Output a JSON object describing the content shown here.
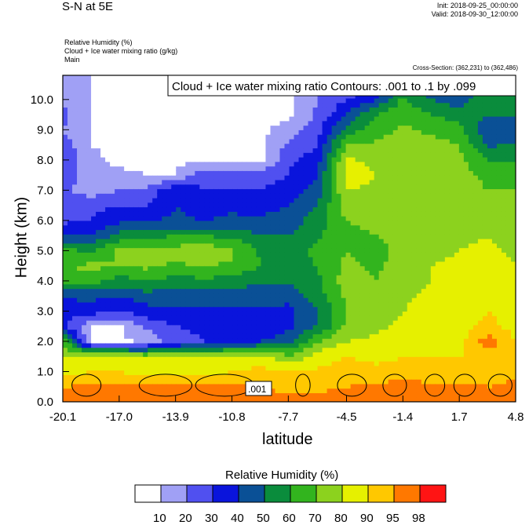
{
  "header": {
    "title": "S-N at 5E",
    "init": "Init: 2018-09-25_00:00:00",
    "valid": "Valid: 2018-09-30_12:00:00",
    "var1": "Relative Humidity   (%)",
    "var2": "Cloud + Ice water mixing ratio   (g/kg)",
    "var3": "Main",
    "cross_section": "Cross-Section: (362,231) to (362,486)"
  },
  "chart_data": {
    "type": "heatmap",
    "title": "S-N at 5E",
    "xlabel": "latitude",
    "ylabel": "Height (km)",
    "xlim": [
      -20.1,
      4.8
    ],
    "ylim": [
      0.0,
      10.8
    ],
    "x_ticks": [
      "-20.1",
      "-17.0",
      "-13.9",
      "-10.8",
      "-7.7",
      "-4.5",
      "-1.4",
      "1.7",
      "4.8"
    ],
    "x_tick_values": [
      -20.1,
      -17.0,
      -13.9,
      -10.8,
      -7.7,
      -4.5,
      -1.4,
      1.7,
      4.8
    ],
    "y_ticks": [
      "0.0",
      "1.0",
      "2.0",
      "3.0",
      "4.0",
      "5.0",
      "6.0",
      "7.0",
      "8.0",
      "9.0",
      "10.0"
    ],
    "y_tick_values": [
      0,
      1,
      2,
      3,
      4,
      5,
      6,
      7,
      8,
      9,
      10
    ],
    "contour_overlay": {
      "label": "Cloud + Ice water mixing ratio Contours: .001 to .1 by .099",
      "inline_label": ".001"
    },
    "colorbar": {
      "title": "Relative Humidity  (%)",
      "levels": [
        "10",
        "20",
        "30",
        "40",
        "50",
        "60",
        "70",
        "80",
        "90",
        "95",
        "98"
      ],
      "colors": [
        "#ffffff",
        "#a0a0f5",
        "#5050f0",
        "#0a14dc",
        "#0a5096",
        "#0a8c3c",
        "#32b41e",
        "#8cd21e",
        "#e6f000",
        "#ffc800",
        "#ff7800",
        "#ff1414"
      ]
    },
    "columns": [
      {
        "lat": -20.1,
        "rh": [
          96,
          95,
          88,
          82,
          68,
          35,
          33,
          42,
          62,
          70,
          62,
          40,
          28,
          26,
          22,
          28,
          30,
          25,
          20,
          22,
          20,
          20
        ]
      },
      {
        "lat": -18.5,
        "rh": [
          98,
          96,
          90,
          85,
          8,
          8,
          35,
          42,
          65,
          72,
          60,
          40,
          30,
          28,
          15,
          12,
          12,
          10,
          10,
          10,
          10,
          10
        ]
      },
      {
        "lat": -17.0,
        "rh": [
          98,
          96,
          90,
          85,
          8,
          8,
          30,
          40,
          55,
          70,
          72,
          55,
          38,
          30,
          20,
          12,
          8,
          8,
          8,
          8,
          8,
          8
        ]
      },
      {
        "lat": -15.5,
        "rh": [
          98,
          96,
          88,
          80,
          12,
          22,
          36,
          45,
          60,
          72,
          72,
          58,
          40,
          30,
          22,
          10,
          8,
          8,
          8,
          8,
          8,
          8
        ]
      },
      {
        "lat": -13.9,
        "rh": [
          98,
          96,
          88,
          82,
          25,
          30,
          38,
          45,
          55,
          68,
          75,
          60,
          42,
          40,
          40,
          10,
          8,
          8,
          8,
          8,
          8,
          8
        ]
      },
      {
        "lat": -12.4,
        "rh": [
          98,
          96,
          88,
          82,
          30,
          32,
          38,
          45,
          58,
          70,
          78,
          60,
          40,
          35,
          30,
          28,
          8,
          8,
          8,
          8,
          8,
          8
        ]
      },
      {
        "lat": -10.8,
        "rh": [
          98,
          96,
          90,
          84,
          32,
          34,
          38,
          44,
          55,
          68,
          72,
          58,
          42,
          38,
          30,
          25,
          8,
          8,
          8,
          8,
          8,
          8
        ]
      },
      {
        "lat": -9.2,
        "rh": [
          98,
          96,
          92,
          86,
          40,
          34,
          38,
          44,
          52,
          60,
          58,
          50,
          42,
          36,
          30,
          25,
          8,
          8,
          8,
          8,
          8,
          8
        ]
      },
      {
        "lat": -7.7,
        "rh": [
          97,
          93,
          90,
          72,
          45,
          38,
          38,
          42,
          52,
          58,
          56,
          50,
          45,
          40,
          35,
          30,
          28,
          22,
          14,
          8,
          8,
          8
        ]
      },
      {
        "lat": -6.1,
        "rh": [
          97,
          94,
          92,
          85,
          70,
          50,
          50,
          55,
          58,
          60,
          62,
          58,
          55,
          50,
          45,
          40,
          35,
          30,
          26,
          22,
          20,
          18
        ]
      },
      {
        "lat": -4.5,
        "rh": [
          97,
          95,
          94,
          90,
          80,
          72,
          70,
          72,
          75,
          72,
          70,
          68,
          70,
          75,
          80,
          85,
          82,
          70,
          55,
          40,
          30,
          20
        ]
      },
      {
        "lat": -2.9,
        "rh": [
          98,
          96,
          92,
          88,
          82,
          78,
          75,
          72,
          70,
          68,
          68,
          70,
          72,
          70,
          78,
          80,
          78,
          72,
          66,
          60,
          40,
          28
        ]
      },
      {
        "lat": -1.4,
        "rh": [
          98,
          97,
          93,
          90,
          86,
          82,
          80,
          78,
          76,
          74,
          72,
          72,
          72,
          75,
          78,
          80,
          78,
          75,
          72,
          68,
          62,
          48
        ]
      },
      {
        "lat": 0.2,
        "rh": [
          98,
          96,
          92,
          90,
          88,
          86,
          84,
          82,
          80,
          80,
          78,
          76,
          74,
          72,
          74,
          76,
          78,
          74,
          68,
          60,
          50,
          40
        ]
      },
      {
        "lat": 1.7,
        "rh": [
          98,
          96,
          93,
          90,
          88,
          88,
          86,
          84,
          82,
          82,
          80,
          78,
          76,
          74,
          72,
          74,
          72,
          70,
          65,
          55,
          45,
          38
        ]
      },
      {
        "lat": 3.3,
        "rh": [
          97,
          95,
          93,
          92,
          98,
          92,
          90,
          88,
          86,
          84,
          82,
          80,
          76,
          72,
          70,
          68,
          60,
          48,
          40,
          50,
          58,
          60
        ]
      },
      {
        "lat": 4.8,
        "rh": [
          98,
          96,
          94,
          92,
          90,
          88,
          86,
          84,
          82,
          80,
          78,
          76,
          74,
          72,
          70,
          66,
          60,
          52,
          45,
          50,
          58,
          62
        ]
      }
    ],
    "column_heights_km": [
      0.0,
      0.5,
      1.0,
      1.5,
      2.0,
      2.5,
      3.0,
      3.5,
      4.0,
      4.5,
      5.0,
      5.5,
      6.0,
      6.5,
      7.0,
      7.5,
      8.0,
      8.5,
      9.0,
      9.5,
      10.0,
      10.5
    ]
  },
  "colorbar_title_text": "Relative Humidity  (%)"
}
